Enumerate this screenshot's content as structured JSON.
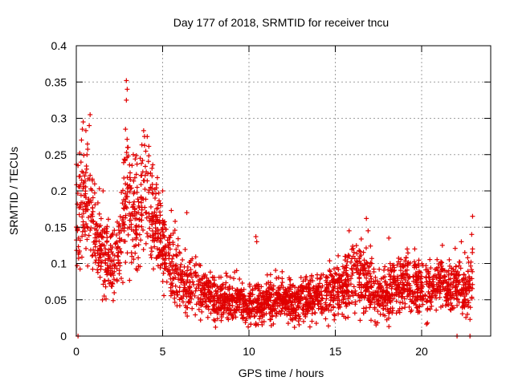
{
  "chart_data": {
    "type": "scatter",
    "title": "Day 177 of 2018, SRMTID for receiver tncu",
    "xlabel": "GPS time / hours",
    "ylabel": "SRMTID / TECUs",
    "xlim": [
      0,
      24
    ],
    "ylim": [
      0,
      0.4
    ],
    "xticks": [
      0,
      5,
      10,
      15,
      20
    ],
    "xtick_labels": [
      "0",
      "5",
      "10",
      "15",
      "20"
    ],
    "yticks": [
      0,
      0.05,
      0.1,
      0.15,
      0.2,
      0.25,
      0.3,
      0.35,
      0.4
    ],
    "ytick_labels": [
      "0",
      "0.05",
      "0.1",
      "0.15",
      "0.2",
      "0.25",
      "0.3",
      "0.35",
      "0.4"
    ],
    "grid": true,
    "marker": "plus",
    "color": "#e00000",
    "series": [
      {
        "name": "SRMTID",
        "trend": {
          "x": [
            0,
            0.3,
            0.7,
            1.0,
            1.5,
            2.0,
            2.5,
            2.8,
            3.0,
            3.3,
            3.7,
            4.0,
            4.5,
            5.0,
            5.5,
            6.0,
            6.5,
            7.0,
            7.5,
            8.0,
            9.0,
            10.0,
            11.0,
            12.0,
            13.0,
            14.0,
            15.0,
            15.5,
            16.0,
            16.5,
            17.0,
            17.5,
            18.0,
            18.5,
            19.0,
            19.5,
            20.0,
            20.5,
            21.0,
            21.5,
            22.0,
            22.5,
            22.9
          ],
          "y": [
            0.17,
            0.19,
            0.18,
            0.15,
            0.11,
            0.1,
            0.12,
            0.17,
            0.19,
            0.16,
            0.17,
            0.19,
            0.16,
            0.13,
            0.1,
            0.08,
            0.075,
            0.07,
            0.06,
            0.05,
            0.05,
            0.045,
            0.05,
            0.05,
            0.05,
            0.055,
            0.065,
            0.075,
            0.085,
            0.08,
            0.065,
            0.06,
            0.055,
            0.07,
            0.075,
            0.07,
            0.065,
            0.065,
            0.07,
            0.065,
            0.07,
            0.06,
            0.07
          ]
        },
        "highlights": [
          {
            "x": 2.9,
            "y": 0.352
          },
          {
            "x": 2.95,
            "y": 0.34
          },
          {
            "x": 2.9,
            "y": 0.325
          },
          {
            "x": 0.4,
            "y": 0.295
          },
          {
            "x": 0.35,
            "y": 0.285
          },
          {
            "x": 0.8,
            "y": 0.305
          },
          {
            "x": 0.75,
            "y": 0.29
          },
          {
            "x": 0.3,
            "y": 0.27
          },
          {
            "x": 2.85,
            "y": 0.285
          },
          {
            "x": 3.9,
            "y": 0.283
          },
          {
            "x": 3.95,
            "y": 0.275
          },
          {
            "x": 0.2,
            "y": 0.252
          },
          {
            "x": 0.6,
            "y": 0.23
          },
          {
            "x": 0.55,
            "y": 0.225
          },
          {
            "x": 3.0,
            "y": 0.26
          },
          {
            "x": 3.3,
            "y": 0.25
          },
          {
            "x": 3.7,
            "y": 0.245
          },
          {
            "x": 5.0,
            "y": 0.2
          },
          {
            "x": 1.55,
            "y": 0.2
          },
          {
            "x": 6.4,
            "y": 0.17
          },
          {
            "x": 16.8,
            "y": 0.162
          },
          {
            "x": 22.95,
            "y": 0.165
          },
          {
            "x": 22.9,
            "y": 0.14
          },
          {
            "x": 10.4,
            "y": 0.137
          },
          {
            "x": 10.45,
            "y": 0.13
          },
          {
            "x": 15.8,
            "y": 0.145
          },
          {
            "x": 16.9,
            "y": 0.145
          },
          {
            "x": 18.1,
            "y": 0.135
          },
          {
            "x": 22.3,
            "y": 0.13
          },
          {
            "x": 22.5,
            "y": 0.115
          },
          {
            "x": 22.95,
            "y": 0.12
          },
          {
            "x": 19.6,
            "y": 0.12
          },
          {
            "x": 21.2,
            "y": 0.125
          },
          {
            "x": 0.1,
            "y": 0.0
          },
          {
            "x": 22.05,
            "y": 0.0
          },
          {
            "x": 22.8,
            "y": 0.0
          }
        ]
      }
    ]
  }
}
